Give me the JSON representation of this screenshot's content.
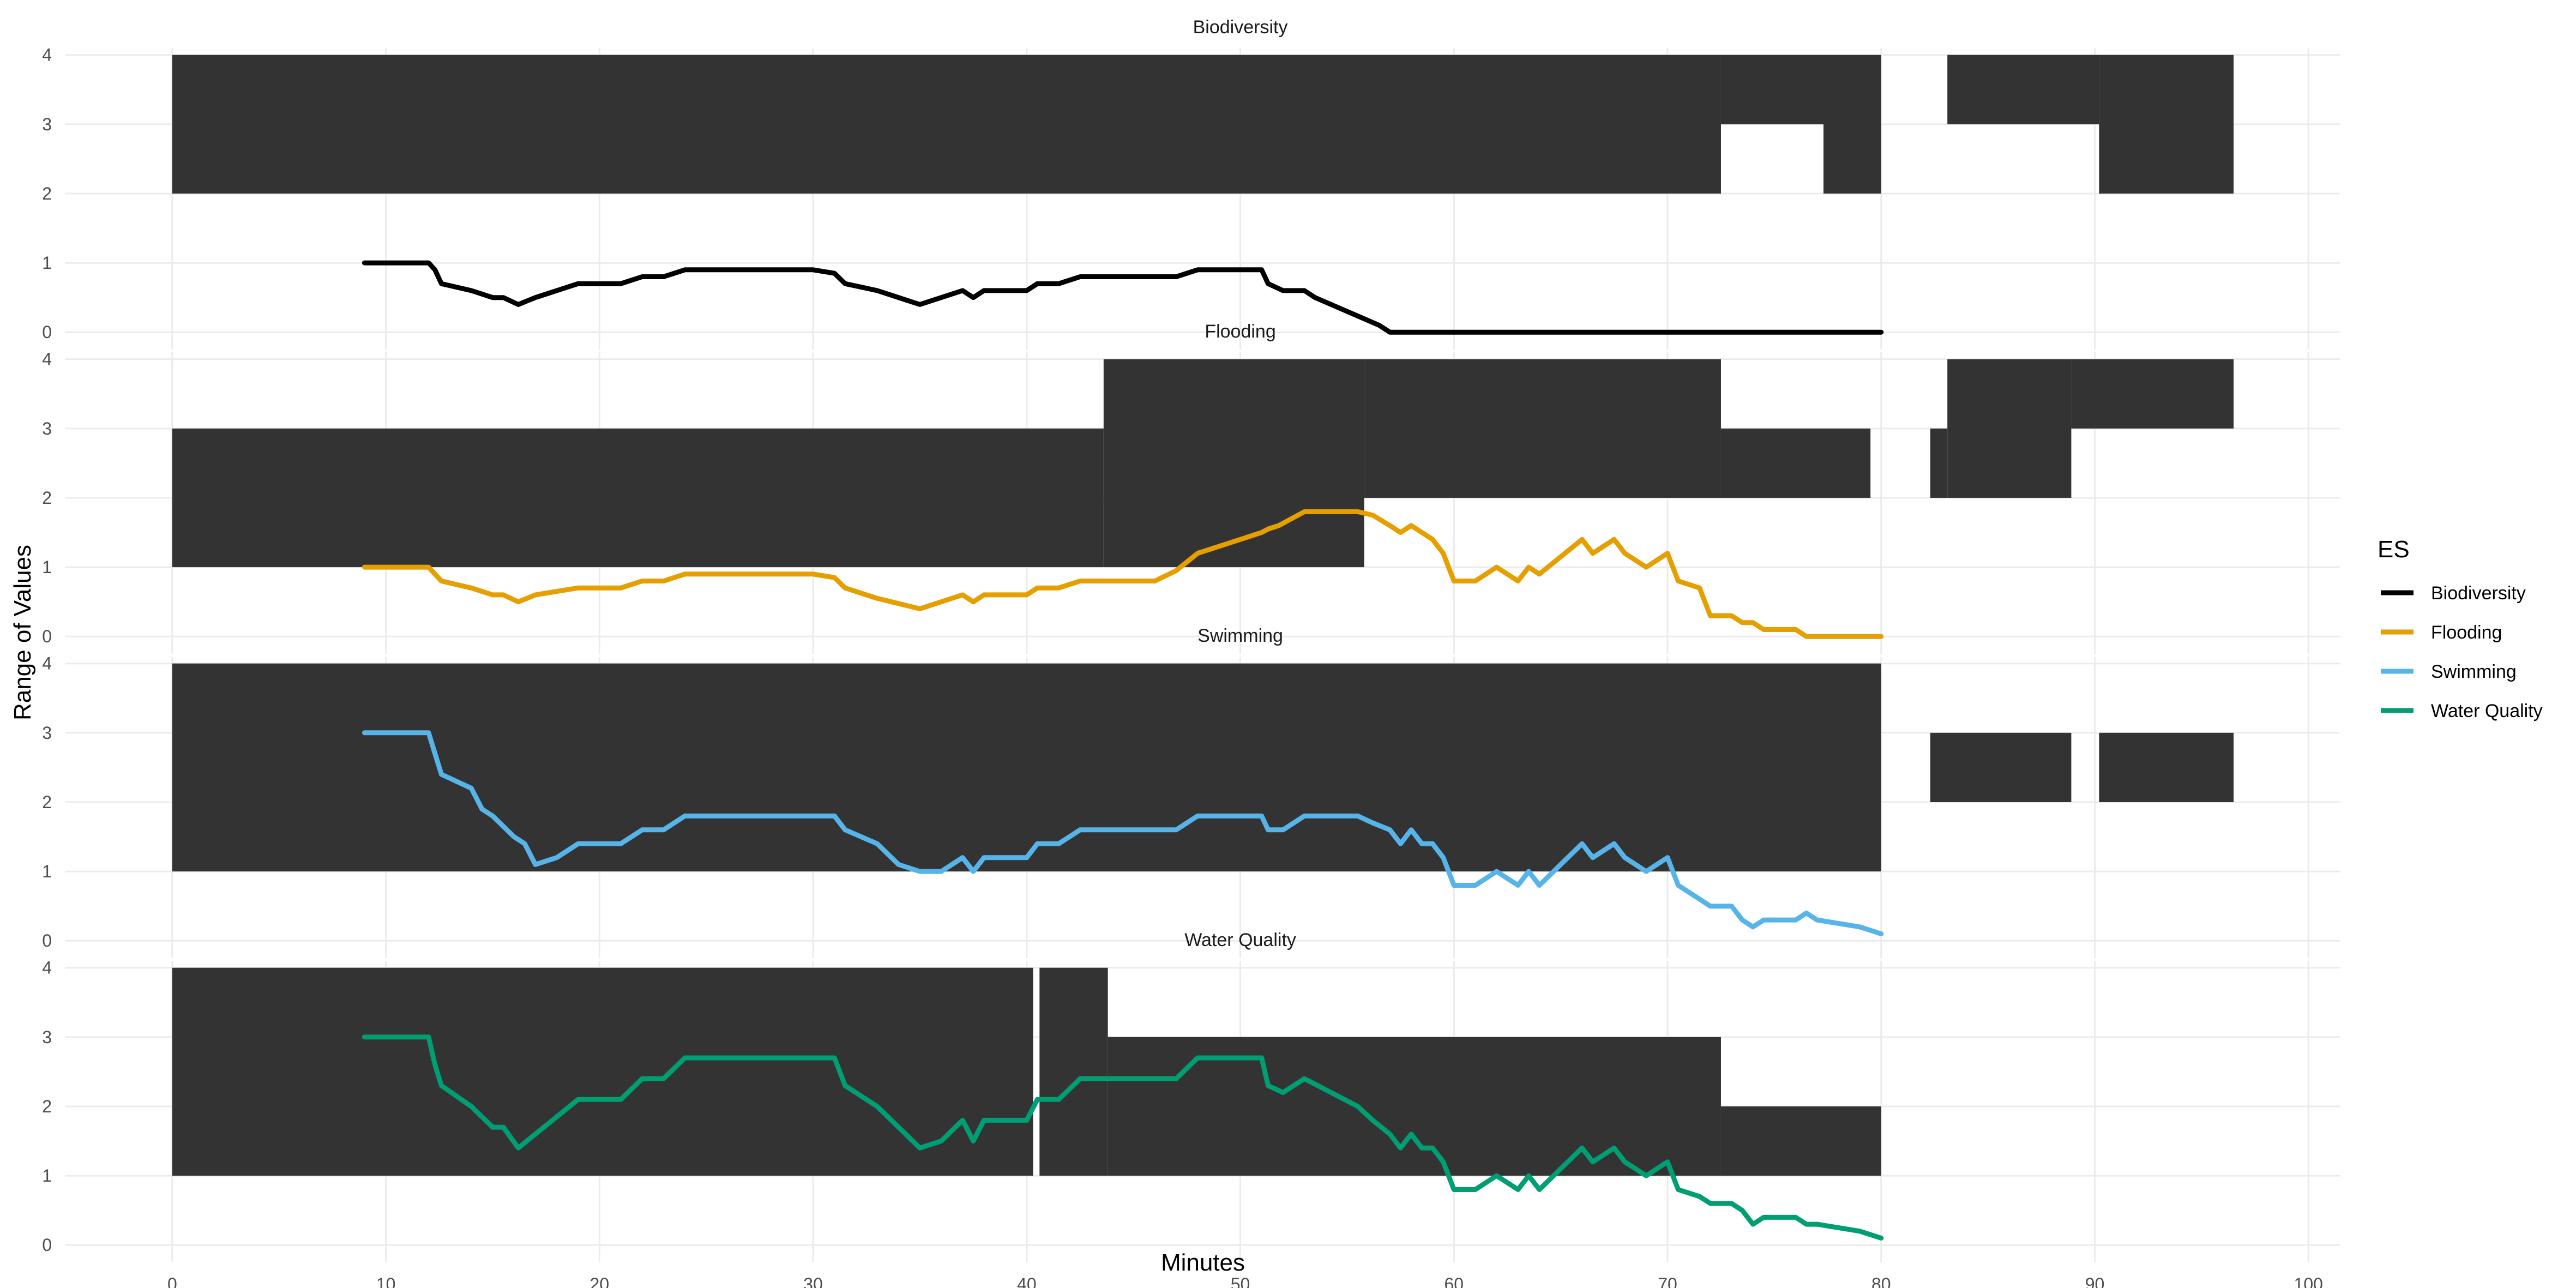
{
  "chart_data": {
    "type": "line",
    "xlabel": "Minutes",
    "ylabel": "Range of Values",
    "xlim": [
      -5,
      101.5
    ],
    "ylim": [
      -0.25,
      4.1
    ],
    "x_ticks": [
      0,
      10,
      20,
      30,
      40,
      50,
      60,
      70,
      80,
      90,
      100
    ],
    "y_ticks": [
      0,
      1,
      2,
      3,
      4
    ],
    "grid": true,
    "legend": {
      "title": "ES",
      "position": "right",
      "entries": [
        "Biodiversity",
        "Flooding",
        "Swimming",
        "Water Quality"
      ]
    },
    "range_color": "#333333",
    "panels": [
      {
        "title": "Biodiversity",
        "color": "#000000",
        "ranges": [
          {
            "x0": 0,
            "x1": 72.5,
            "ymin": 2,
            "ymax": 4
          },
          {
            "x0": 72.5,
            "x1": 77.3,
            "ymin": 3,
            "ymax": 4
          },
          {
            "x0": 77.3,
            "x1": 80,
            "ymin": 2,
            "ymax": 4
          },
          {
            "x0": 83.1,
            "x1": 90.2,
            "ymin": 3,
            "ymax": 4
          },
          {
            "x0": 90.2,
            "x1": 96.5,
            "ymin": 2,
            "ymax": 4
          }
        ],
        "x": [
          9,
          12,
          12.3,
          12.6,
          14,
          15,
          15.5,
          16.2,
          16.6,
          17,
          19,
          21,
          22,
          23,
          24,
          30,
          31,
          31.5,
          33,
          35,
          37,
          37.5,
          38,
          40,
          40.5,
          41.5,
          42.5,
          47,
          48,
          51,
          51.3,
          52,
          53,
          53.5,
          56.5,
          57,
          80
        ],
        "y": [
          1,
          1,
          0.9,
          0.7,
          0.6,
          0.5,
          0.5,
          0.4,
          0.45,
          0.5,
          0.7,
          0.7,
          0.8,
          0.8,
          0.9,
          0.9,
          0.85,
          0.7,
          0.6,
          0.4,
          0.6,
          0.5,
          0.6,
          0.6,
          0.7,
          0.7,
          0.8,
          0.8,
          0.9,
          0.9,
          0.7,
          0.6,
          0.6,
          0.5,
          0.1,
          0,
          0
        ]
      },
      {
        "title": "Flooding",
        "color": "#E69F00",
        "ranges": [
          {
            "x0": 0,
            "x1": 43.6,
            "ymin": 1,
            "ymax": 3
          },
          {
            "x0": 43.6,
            "x1": 55.8,
            "ymin": 1,
            "ymax": 4
          },
          {
            "x0": 55.8,
            "x1": 72.5,
            "ymin": 2,
            "ymax": 4
          },
          {
            "x0": 72.5,
            "x1": 79.5,
            "ymin": 2,
            "ymax": 3
          },
          {
            "x0": 82.3,
            "x1": 83.1,
            "ymin": 2,
            "ymax": 3
          },
          {
            "x0": 83.1,
            "x1": 88.9,
            "ymin": 2,
            "ymax": 4
          },
          {
            "x0": 88.9,
            "x1": 96.5,
            "ymin": 3,
            "ymax": 4
          }
        ],
        "x": [
          9,
          12,
          12.3,
          12.6,
          14,
          15,
          15.5,
          16.2,
          16.6,
          17,
          19,
          21,
          22,
          23,
          24,
          30,
          31,
          31.5,
          33,
          35,
          37,
          37.5,
          38,
          40,
          40.5,
          41.5,
          42.5,
          46,
          47,
          48,
          51,
          51.3,
          51.8,
          53,
          55.5,
          56.2,
          57,
          57.5,
          58,
          58.5,
          59,
          59.5,
          60,
          61,
          62,
          63,
          63.5,
          64,
          66,
          66.5,
          67.5,
          68,
          69,
          70,
          70.5,
          71.5,
          72,
          73,
          73.5,
          74,
          74.5,
          76,
          76.5,
          80
        ],
        "y": [
          1,
          1,
          0.9,
          0.8,
          0.7,
          0.6,
          0.6,
          0.5,
          0.55,
          0.6,
          0.7,
          0.7,
          0.8,
          0.8,
          0.9,
          0.9,
          0.85,
          0.7,
          0.55,
          0.4,
          0.6,
          0.5,
          0.6,
          0.6,
          0.7,
          0.7,
          0.8,
          0.8,
          0.95,
          1.2,
          1.5,
          1.55,
          1.6,
          1.8,
          1.8,
          1.75,
          1.6,
          1.5,
          1.6,
          1.5,
          1.4,
          1.2,
          0.8,
          0.8,
          1,
          0.8,
          1,
          0.9,
          1.4,
          1.2,
          1.4,
          1.2,
          1.0,
          1.2,
          0.8,
          0.7,
          0.3,
          0.3,
          0.2,
          0.2,
          0.1,
          0.1,
          0,
          0
        ]
      },
      {
        "title": "Swimming",
        "color": "#56B4E9",
        "ranges": [
          {
            "x0": 0,
            "x1": 80,
            "ymin": 1,
            "ymax": 4
          },
          {
            "x0": 82.3,
            "x1": 88.9,
            "ymin": 2,
            "ymax": 3
          },
          {
            "x0": 90.2,
            "x1": 96.5,
            "ymin": 2,
            "ymax": 3
          }
        ],
        "x": [
          9,
          12,
          12.3,
          12.6,
          14,
          14.5,
          15,
          16,
          16.5,
          17,
          18,
          19,
          21,
          22,
          23,
          24,
          31,
          31.5,
          33,
          34,
          35,
          36,
          37,
          37.5,
          38,
          40,
          40.5,
          41.5,
          42.5,
          47,
          48,
          51,
          51.3,
          52,
          53,
          55.5,
          56.2,
          57,
          57.5,
          58,
          58.5,
          59,
          59.5,
          60,
          61,
          62,
          63,
          63.5,
          64,
          66,
          66.5,
          67.5,
          68,
          69,
          70,
          70.5,
          71.5,
          72,
          73,
          73.5,
          74,
          74.5,
          76,
          76.5,
          77,
          79,
          80
        ],
        "y": [
          3,
          3,
          2.7,
          2.4,
          2.2,
          1.9,
          1.8,
          1.5,
          1.4,
          1.1,
          1.2,
          1.4,
          1.4,
          1.6,
          1.6,
          1.8,
          1.8,
          1.6,
          1.4,
          1.1,
          1.0,
          1.0,
          1.2,
          1.0,
          1.2,
          1.2,
          1.4,
          1.4,
          1.6,
          1.6,
          1.8,
          1.8,
          1.6,
          1.6,
          1.8,
          1.8,
          1.7,
          1.6,
          1.4,
          1.6,
          1.4,
          1.4,
          1.2,
          0.8,
          0.8,
          1.0,
          0.8,
          1.0,
          0.8,
          1.4,
          1.2,
          1.4,
          1.2,
          1.0,
          1.2,
          0.8,
          0.6,
          0.5,
          0.5,
          0.3,
          0.2,
          0.3,
          0.3,
          0.4,
          0.3,
          0.2,
          0.1
        ]
      },
      {
        "title": "Water Quality",
        "color": "#009E73",
        "ranges": [
          {
            "x0": 0,
            "x1": 40.3,
            "ymin": 1,
            "ymax": 4
          },
          {
            "x0": 40.6,
            "x1": 43.8,
            "ymin": 1,
            "ymax": 4
          },
          {
            "x0": 43.8,
            "x1": 72.5,
            "ymin": 1,
            "ymax": 3
          },
          {
            "x0": 72.5,
            "x1": 80,
            "ymin": 1,
            "ymax": 2
          }
        ],
        "x": [
          9,
          12,
          12.3,
          12.6,
          14,
          15,
          15.5,
          16.2,
          16.6,
          17,
          19,
          21,
          22,
          23,
          24,
          31,
          31.5,
          33,
          34,
          35,
          36,
          37,
          37.5,
          38,
          40,
          40.5,
          41.5,
          42.5,
          47,
          48,
          51,
          51.3,
          52,
          53,
          55.5,
          56.2,
          57,
          57.5,
          58,
          58.5,
          59,
          59.5,
          60,
          61,
          62,
          63,
          63.5,
          64,
          66,
          66.5,
          67.5,
          68,
          69,
          70,
          70.5,
          71.5,
          72,
          73,
          73.5,
          74,
          74.5,
          76,
          76.5,
          77,
          79,
          80
        ],
        "y": [
          3,
          3,
          2.6,
          2.3,
          2.0,
          1.7,
          1.7,
          1.4,
          1.5,
          1.6,
          2.1,
          2.1,
          2.4,
          2.4,
          2.7,
          2.7,
          2.3,
          2.0,
          1.7,
          1.4,
          1.5,
          1.8,
          1.5,
          1.8,
          1.8,
          2.1,
          2.1,
          2.4,
          2.4,
          2.7,
          2.7,
          2.3,
          2.2,
          2.4,
          2.0,
          1.8,
          1.6,
          1.4,
          1.6,
          1.4,
          1.4,
          1.2,
          0.8,
          0.8,
          1.0,
          0.8,
          1.0,
          0.8,
          1.4,
          1.2,
          1.4,
          1.2,
          1.0,
          1.2,
          0.8,
          0.7,
          0.6,
          0.6,
          0.5,
          0.3,
          0.4,
          0.4,
          0.3,
          0.3,
          0.2,
          0.1
        ]
      }
    ]
  }
}
